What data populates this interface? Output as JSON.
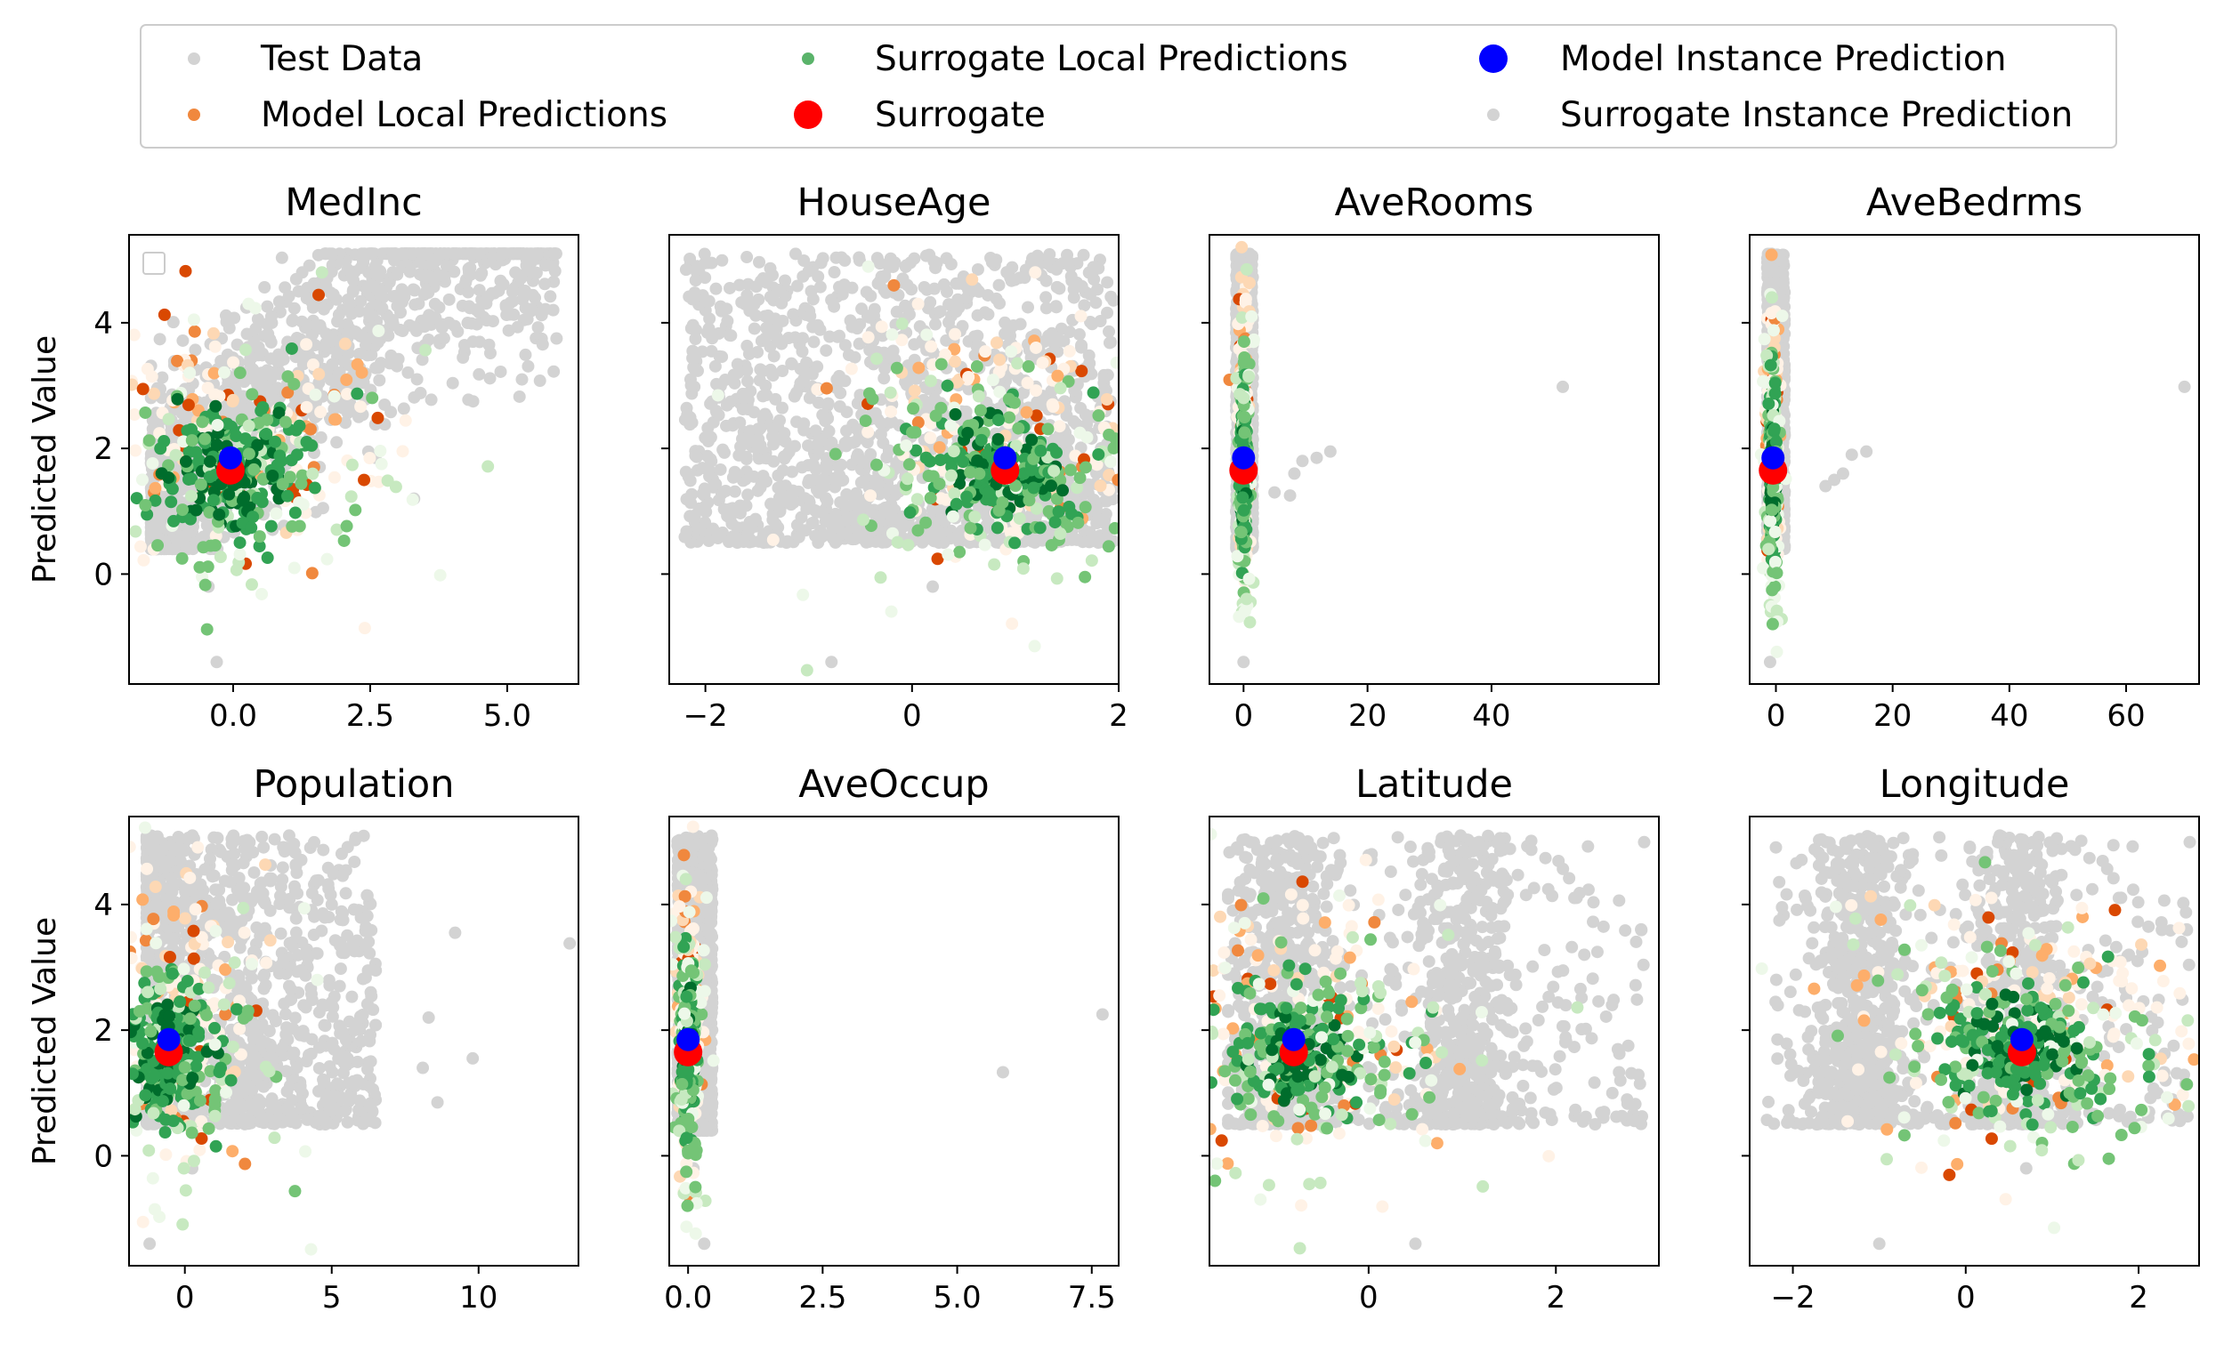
{
  "figure": {
    "ylabel": "Predicted Value"
  },
  "legend": {
    "entries": [
      {
        "label": "Test Data",
        "color": "#d3d3d3",
        "marker": "small"
      },
      {
        "label": "Model Local Predictions",
        "color": "#f0883e",
        "marker": "small"
      },
      {
        "label": "Surrogate Local Predictions",
        "color": "#5ab36a",
        "marker": "small"
      },
      {
        "label": "Surrogate",
        "color": "#ff0000",
        "marker": "large"
      },
      {
        "label": "Model Instance Prediction",
        "color": "#0000ff",
        "marker": "large"
      },
      {
        "label": "Surrogate Instance Prediction",
        "color": "#d3d3d3",
        "marker": "small"
      }
    ]
  },
  "colors": {
    "test": "#d3d3d3",
    "orange": [
      "#fff2e6",
      "#fdd8b4",
      "#fdae6b",
      "#f0883e",
      "#d94801"
    ],
    "green": [
      "#edf8e9",
      "#c7e9c0",
      "#74c476",
      "#31a354",
      "#006d2c"
    ],
    "surrogate": "#ff0000",
    "model": "#0000ff"
  },
  "chart_data": [
    {
      "type": "scatter",
      "title": "MedInc",
      "ylabel": "Predicted Value",
      "xlim": [
        -1.9,
        6.3
      ],
      "ylim": [
        -1.75,
        5.4
      ],
      "xticks": [
        0.0,
        2.5,
        5.0
      ],
      "xtick_labels": [
        "0.0",
        "2.5",
        "5.0"
      ],
      "yticks": [
        0,
        2,
        4
      ],
      "ytick_labels": [
        "0",
        "2",
        "4"
      ],
      "instance": {
        "x": -0.05,
        "surrogate_y": 1.65,
        "model_y": 1.85
      },
      "spread": {
        "kind": "trend",
        "x_range": [
          -1.5,
          5.9
        ],
        "y_range": [
          0.4,
          5.1
        ]
      },
      "local": {
        "sx": 0.55,
        "sy": 0.85
      },
      "outliers": [
        [
          5.9,
          3.75
        ],
        [
          3.3,
          1.2
        ],
        [
          -0.3,
          -1.4
        ],
        [
          -0.45,
          -0.2
        ]
      ]
    },
    {
      "type": "scatter",
      "title": "HouseAge",
      "xlim": [
        -2.35,
        2.0
      ],
      "ylim": [
        -1.75,
        5.4
      ],
      "xticks": [
        -2,
        0,
        2
      ],
      "xtick_labels": [
        "−2",
        "0",
        "2"
      ],
      "yticks": [
        0,
        2,
        4
      ],
      "ytick_labels": [],
      "instance": {
        "x": 0.9,
        "surrogate_y": 1.65,
        "model_y": 1.85
      },
      "spread": {
        "kind": "uniform",
        "x_range": [
          -2.2,
          1.95
        ],
        "y_range": [
          0.5,
          5.1
        ]
      },
      "local": {
        "sx": 0.5,
        "sy": 0.9
      },
      "outliers": [
        [
          -0.78,
          -1.4
        ],
        [
          0.2,
          -0.2
        ]
      ]
    },
    {
      "type": "scatter",
      "title": "AveRooms",
      "xlim": [
        -5.5,
        67.0
      ],
      "ylim": [
        -1.75,
        5.4
      ],
      "xticks": [
        0,
        20,
        40
      ],
      "xtick_labels": [
        "0",
        "20",
        "40"
      ],
      "yticks": [
        0,
        2,
        4
      ],
      "ytick_labels": [],
      "instance": {
        "x": 0.0,
        "surrogate_y": 1.65,
        "model_y": 1.85
      },
      "spread": {
        "kind": "narrow",
        "x_range": [
          -1.2,
          1.5
        ],
        "y_range": [
          0.4,
          5.1
        ]
      },
      "local": {
        "sx": 0.5,
        "sy": 1.0
      },
      "outliers": [
        [
          51.5,
          2.98
        ],
        [
          14.0,
          1.95
        ],
        [
          11.8,
          1.85
        ],
        [
          9.5,
          1.8
        ],
        [
          8.2,
          1.6
        ],
        [
          7.5,
          1.25
        ],
        [
          5.0,
          1.3
        ],
        [
          0.0,
          -1.4
        ]
      ]
    },
    {
      "type": "scatter",
      "title": "AveBedrms",
      "xlim": [
        -4.5,
        72.5
      ],
      "ylim": [
        -1.75,
        5.4
      ],
      "xticks": [
        0,
        20,
        40,
        60
      ],
      "xtick_labels": [
        "0",
        "20",
        "40",
        "60"
      ],
      "yticks": [
        0,
        2,
        4
      ],
      "ytick_labels": [],
      "instance": {
        "x": -0.5,
        "surrogate_y": 1.65,
        "model_y": 1.85
      },
      "spread": {
        "kind": "narrow",
        "x_range": [
          -1.5,
          1.5
        ],
        "y_range": [
          0.4,
          5.1
        ]
      },
      "local": {
        "sx": 0.5,
        "sy": 1.0
      },
      "outliers": [
        [
          70.0,
          2.98
        ],
        [
          15.5,
          1.95
        ],
        [
          13.0,
          1.9
        ],
        [
          11.5,
          1.6
        ],
        [
          10.0,
          1.5
        ],
        [
          8.5,
          1.4
        ],
        [
          -1.0,
          -1.4
        ]
      ]
    },
    {
      "type": "scatter",
      "title": "Population",
      "ylabel": "Predicted Value",
      "xlim": [
        -1.9,
        13.4
      ],
      "ylim": [
        -1.75,
        5.4
      ],
      "xticks": [
        0,
        5,
        10
      ],
      "xtick_labels": [
        "0",
        "5",
        "10"
      ],
      "yticks": [
        0,
        2,
        4
      ],
      "ytick_labels": [
        "0",
        "2",
        "4"
      ],
      "instance": {
        "x": -0.55,
        "surrogate_y": 1.65,
        "model_y": 1.85
      },
      "spread": {
        "kind": "decay",
        "x_range": [
          -1.3,
          6.5
        ],
        "y_range": [
          0.5,
          5.1
        ]
      },
      "local": {
        "sx": 0.6,
        "sy": 1.0
      },
      "outliers": [
        [
          13.1,
          3.38
        ],
        [
          9.2,
          3.55
        ],
        [
          8.3,
          2.2
        ],
        [
          9.8,
          1.55
        ],
        [
          8.6,
          0.85
        ],
        [
          8.1,
          1.4
        ],
        [
          5.0,
          4.0
        ],
        [
          6.5,
          2.95
        ],
        [
          -1.2,
          -1.4
        ],
        [
          0.25,
          -0.2
        ]
      ]
    },
    {
      "type": "scatter",
      "title": "AveOccup",
      "xlim": [
        -0.35,
        8.0
      ],
      "ylim": [
        -1.75,
        5.4
      ],
      "xticks": [
        0.0,
        2.5,
        5.0,
        7.5
      ],
      "xtick_labels": [
        "0.0",
        "2.5",
        "5.0",
        "7.5"
      ],
      "yticks": [
        0,
        2,
        4
      ],
      "ytick_labels": [],
      "instance": {
        "x": 0.0,
        "surrogate_y": 1.65,
        "model_y": 1.85
      },
      "spread": {
        "kind": "narrow",
        "x_range": [
          -0.2,
          0.45
        ],
        "y_range": [
          0.4,
          5.1
        ]
      },
      "local": {
        "sx": 0.5,
        "sy": 1.0
      },
      "outliers": [
        [
          7.7,
          2.25
        ],
        [
          5.85,
          1.33
        ],
        [
          0.3,
          -1.4
        ],
        [
          0.1,
          -0.2
        ]
      ]
    },
    {
      "type": "scatter",
      "title": "Latitude",
      "xlim": [
        -1.7,
        3.1
      ],
      "ylim": [
        -1.75,
        5.4
      ],
      "xticks": [
        0,
        2
      ],
      "xtick_labels": [
        "0",
        "2"
      ],
      "yticks": [
        0,
        2,
        4
      ],
      "ytick_labels": [],
      "instance": {
        "x": -0.8,
        "surrogate_y": 1.65,
        "model_y": 1.85
      },
      "spread": {
        "kind": "bimodal",
        "x_range": [
          -1.5,
          2.95
        ],
        "y_range": [
          0.5,
          5.1
        ],
        "peaks": [
          -0.9,
          1.0
        ]
      },
      "local": {
        "sx": 0.55,
        "sy": 0.9
      },
      "outliers": [
        [
          0.5,
          -1.4
        ],
        [
          2.6,
          2.4
        ]
      ]
    },
    {
      "type": "scatter",
      "title": "Longitude",
      "xlim": [
        -2.5,
        2.7
      ],
      "ylim": [
        -1.75,
        5.4
      ],
      "xticks": [
        -2,
        0,
        2
      ],
      "xtick_labels": [
        "−2",
        "0",
        "2"
      ],
      "yticks": [
        0,
        2,
        4
      ],
      "ytick_labels": [],
      "instance": {
        "x": 0.65,
        "surrogate_y": 1.65,
        "model_y": 1.85
      },
      "spread": {
        "kind": "bimodal",
        "x_range": [
          -2.3,
          2.6
        ],
        "y_range": [
          0.5,
          5.1
        ],
        "peaks": [
          -1.25,
          0.6
        ]
      },
      "local": {
        "sx": 0.55,
        "sy": 0.9
      },
      "outliers": [
        [
          -1.0,
          -1.4
        ],
        [
          0.7,
          -0.2
        ],
        [
          -2.2,
          2.45
        ]
      ]
    }
  ]
}
